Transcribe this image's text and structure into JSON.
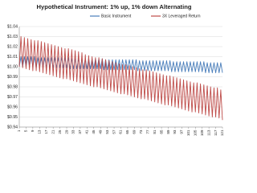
{
  "chart_data": {
    "type": "line",
    "title": "Hypothetical Instrument: 1% up, 1% down Alternating",
    "x": [
      1,
      2,
      3,
      4,
      5,
      6,
      7,
      8,
      9,
      10,
      11,
      12,
      13,
      14,
      15,
      16,
      17,
      18,
      19,
      20,
      21,
      22,
      23,
      24,
      25,
      26,
      27,
      28,
      29,
      30,
      31,
      32,
      33,
      34,
      35,
      36,
      37,
      38,
      39,
      40,
      41,
      42,
      43,
      44,
      45,
      46,
      47,
      48,
      49,
      50,
      51,
      52,
      53,
      54,
      55,
      56,
      57,
      58,
      59,
      60,
      61,
      62,
      63,
      64,
      65,
      66,
      67,
      68,
      69,
      70,
      71,
      72,
      73,
      74,
      75,
      76,
      77,
      78,
      79,
      80,
      81,
      82,
      83,
      84,
      85,
      86,
      87,
      88,
      89,
      90,
      91,
      92,
      93,
      94,
      95,
      96,
      97,
      98,
      99,
      100,
      101,
      102,
      103,
      104,
      105,
      106,
      107,
      108,
      109,
      110,
      111,
      112,
      113,
      114,
      115,
      116,
      117,
      118,
      119,
      120,
      121
    ],
    "xlim": [
      1,
      121
    ],
    "xticks": [
      1,
      5,
      9,
      13,
      17,
      21,
      25,
      29,
      33,
      37,
      41,
      45,
      49,
      53,
      57,
      61,
      65,
      69,
      73,
      77,
      81,
      85,
      89,
      93,
      97,
      101,
      105,
      109,
      113,
      117,
      121
    ],
    "ylim": [
      0.94,
      1.04
    ],
    "yticks": [
      {
        "value": 0.94,
        "label": "$0.94"
      },
      {
        "value": 0.95,
        "label": "$0.95"
      },
      {
        "value": 0.96,
        "label": "$0.96"
      },
      {
        "value": 0.97,
        "label": "$0.97"
      },
      {
        "value": 0.98,
        "label": "$0.98"
      },
      {
        "value": 0.99,
        "label": "$0.99"
      },
      {
        "value": 1.0,
        "label": "$1.00"
      },
      {
        "value": 1.01,
        "label": "$1.01"
      },
      {
        "value": 1.02,
        "label": "$1.02"
      },
      {
        "value": 1.03,
        "label": "$1.03"
      },
      {
        "value": 1.04,
        "label": "$1.04"
      }
    ],
    "grid": true,
    "legend": "top",
    "series": [
      {
        "name": "Basic Instrument",
        "color": "#4a7ebb",
        "values": [
          1.0,
          1.01,
          1.0,
          1.01,
          1.0,
          1.01,
          1.0,
          1.01,
          1.0,
          1.01,
          0.999,
          1.009,
          0.999,
          1.009,
          0.999,
          1.009,
          0.999,
          1.009,
          0.999,
          1.009,
          0.999,
          1.009,
          0.999,
          1.009,
          0.999,
          1.009,
          0.999,
          1.009,
          0.999,
          1.009,
          0.998,
          1.008,
          0.998,
          1.008,
          0.998,
          1.008,
          0.998,
          1.008,
          0.998,
          1.008,
          0.998,
          1.008,
          0.998,
          1.008,
          0.998,
          1.008,
          0.998,
          1.008,
          0.998,
          1.008,
          0.997,
          1.007,
          0.997,
          1.007,
          0.997,
          1.007,
          0.997,
          1.007,
          0.997,
          1.007,
          0.997,
          1.007,
          0.997,
          1.007,
          0.997,
          1.007,
          0.997,
          1.007,
          0.997,
          1.007,
          0.996,
          1.006,
          0.996,
          1.006,
          0.996,
          1.006,
          0.996,
          1.006,
          0.996,
          1.006,
          0.996,
          1.006,
          0.996,
          1.006,
          0.996,
          1.006,
          0.996,
          1.006,
          0.996,
          1.006,
          0.995,
          1.005,
          0.995,
          1.005,
          0.995,
          1.005,
          0.995,
          1.005,
          0.995,
          1.005,
          0.995,
          1.005,
          0.995,
          1.005,
          0.995,
          1.005,
          0.995,
          1.005,
          0.995,
          1.005,
          0.994,
          1.004,
          0.994,
          1.004,
          0.994,
          1.004,
          0.994,
          1.004,
          0.994,
          1.004,
          0.994
        ]
      },
      {
        "name": "3X Leveraged Return",
        "color": "#be4b48",
        "values": [
          1.0,
          1.03,
          0.999,
          1.029,
          0.998,
          1.028,
          0.997,
          1.027,
          0.996,
          1.026,
          0.996,
          1.026,
          0.995,
          1.025,
          0.994,
          1.024,
          0.993,
          1.023,
          0.992,
          1.022,
          0.991,
          1.021,
          0.99,
          1.02,
          0.989,
          1.019,
          0.988,
          1.018,
          0.988,
          1.018,
          0.987,
          1.017,
          0.986,
          1.016,
          0.985,
          1.015,
          0.984,
          1.014,
          0.983,
          1.012,
          0.982,
          1.011,
          0.981,
          1.01,
          0.98,
          1.009,
          0.98,
          1.009,
          0.979,
          1.008,
          0.978,
          1.007,
          0.977,
          1.006,
          0.976,
          1.005,
          0.975,
          1.004,
          0.974,
          1.003,
          0.973,
          1.002,
          0.973,
          1.002,
          0.972,
          1.001,
          0.971,
          1.0,
          0.97,
          0.999,
          0.969,
          0.998,
          0.968,
          0.997,
          0.968,
          0.997,
          0.967,
          0.996,
          0.966,
          0.995,
          0.965,
          0.994,
          0.964,
          0.993,
          0.963,
          0.992,
          0.962,
          0.991,
          0.962,
          0.991,
          0.961,
          0.99,
          0.96,
          0.989,
          0.959,
          0.988,
          0.958,
          0.987,
          0.957,
          0.986,
          0.956,
          0.985,
          0.955,
          0.984,
          0.955,
          0.984,
          0.954,
          0.983,
          0.953,
          0.982,
          0.952,
          0.981,
          0.951,
          0.98,
          0.95,
          0.979,
          0.95,
          0.979,
          0.949,
          0.977,
          0.947
        ]
      }
    ]
  }
}
